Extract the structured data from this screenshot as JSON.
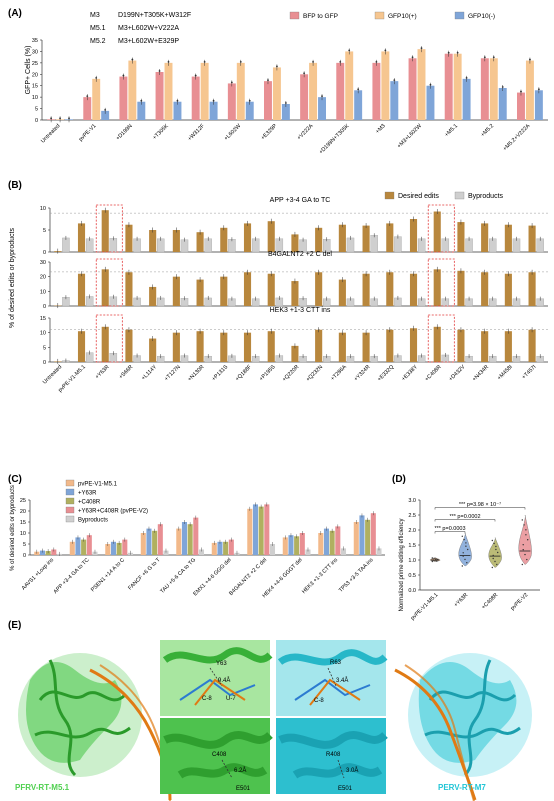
{
  "panelA": {
    "letter": "(A)",
    "ylabel": "GFP+ Cells (%)",
    "yticks": [
      "0",
      "5",
      "10",
      "15",
      "20",
      "25",
      "30",
      "35"
    ],
    "variants": [
      {
        "name": "M3",
        "desc": "D199N+T305K+W312F"
      },
      {
        "name": "M5.1",
        "desc": "M3+L602W+V222A"
      },
      {
        "name": "M5.2",
        "desc": "M3+L602W+E329P"
      }
    ],
    "legend": [
      "BFP to GFP",
      "GFP10(+)",
      "GFP10(-)"
    ],
    "colors": [
      "#e88f93",
      "#f6c690",
      "#7fa5d8"
    ],
    "chart_data": {
      "type": "bar",
      "ylim": [
        0,
        35
      ],
      "categories": [
        "Untreated",
        "pvPE-V1",
        "+D199N",
        "+T305K",
        "+W312F",
        "+L602W",
        "+E329P",
        "+V222A",
        "+D199N+T305K",
        "+M3",
        "+M3+L602W",
        "+M5.1",
        "+M5.2",
        "+M5.2+V222A"
      ],
      "series": [
        {
          "name": "BFP to GFP",
          "values": [
            0.3,
            10,
            19,
            21,
            19,
            16,
            17,
            20,
            25,
            25,
            27,
            29,
            27,
            12
          ]
        },
        {
          "name": "GFP10(+)",
          "values": [
            0.3,
            18,
            26,
            25,
            25,
            25,
            23,
            25,
            30,
            30,
            31,
            29,
            27,
            26
          ]
        },
        {
          "name": "GFP10(-)",
          "values": [
            0.3,
            4,
            8,
            8,
            8,
            8,
            7,
            10,
            13,
            17,
            15,
            18,
            14,
            13
          ]
        }
      ]
    }
  },
  "panelB": {
    "letter": "(B)",
    "ylabel": "% of desired edits or byproducts",
    "legend": [
      "Desired edits",
      "Byproducts"
    ],
    "colors": [
      "#b8873d",
      "#cfcfcf"
    ],
    "categories": [
      "Untreated",
      "pvPE-V1-M5.1",
      "+Y63R",
      "+S66R",
      "+L114Y",
      "+T127N",
      "+N130R",
      "+P131S",
      "+Q188F",
      "+P195S",
      "+Q220R",
      "+Q232N",
      "+T286A",
      "+Y324R",
      "+E332Q",
      "+E338Y",
      "+C408R",
      "+D432V",
      "+N434R",
      "+M458I",
      "+T457I"
    ],
    "sub": [
      {
        "gene": "APP",
        "edit": "+3-4 GA to TC",
        "ylim": [
          0,
          10
        ],
        "yticks": [
          "0",
          "5",
          "10"
        ],
        "desired": [
          0.2,
          6.5,
          9.5,
          6.2,
          5.0,
          5.0,
          4.5,
          5.5,
          6.5,
          7.0,
          4.0,
          5.5,
          6.2,
          6.0,
          6.5,
          7.5,
          9.2,
          6.8,
          6.5,
          6.2,
          6.0
        ],
        "byproducts": [
          3.2,
          3.0,
          3.1,
          3.0,
          3.0,
          2.8,
          3.0,
          2.9,
          3.0,
          3.0,
          2.8,
          2.9,
          3.2,
          3.8,
          3.5,
          3.0,
          3.0,
          3.0,
          3.0,
          3.0,
          3.0
        ]
      },
      {
        "gene": "B4GALNT2",
        "edit": "+2 C del",
        "ylim": [
          0,
          30
        ],
        "yticks": [
          "0",
          "10",
          "20",
          "30"
        ],
        "desired": [
          0.3,
          22,
          25,
          23,
          13,
          20,
          18,
          20,
          23,
          22,
          17,
          23,
          18,
          22,
          23,
          22,
          25,
          24,
          23,
          22,
          23
        ],
        "byproducts": [
          6.0,
          6.5,
          6.3,
          5.5,
          5.5,
          5.3,
          5.5,
          5.0,
          5.0,
          5.5,
          5.3,
          5.0,
          5.0,
          5.0,
          5.5,
          5.0,
          5.0,
          5.0,
          5.0,
          5.0,
          5.0
        ]
      },
      {
        "gene": "HEK3",
        "edit": "+1-3 CTT ins",
        "ylim": [
          0,
          15
        ],
        "yticks": [
          "0",
          "5",
          "10",
          "15"
        ],
        "desired": [
          0.2,
          10.5,
          12.0,
          11.0,
          8.0,
          10.0,
          10.5,
          10.0,
          10.0,
          10.5,
          5.5,
          11.0,
          10.0,
          10.0,
          11.0,
          11.5,
          12.0,
          11.0,
          10.5,
          10.5,
          11.0
        ],
        "byproducts": [
          0.5,
          3.2,
          3.0,
          2.2,
          2.0,
          2.2,
          2.0,
          2.1,
          2.0,
          2.2,
          2.0,
          2.0,
          2.0,
          2.0,
          2.2,
          2.2,
          2.4,
          2.0,
          2.0,
          2.0,
          2.0
        ]
      }
    ]
  },
  "panelC": {
    "letter": "(C)",
    "ylabel": "% of desired edits or byproducts",
    "yticks": [
      "0",
      "5",
      "10",
      "15",
      "20",
      "25"
    ],
    "legend": [
      "pvPE-V1-M5.1",
      "+Y63R",
      "+C408R",
      "+Y63R+C408R (pvPE-V2)",
      "Byproducts"
    ],
    "colors": [
      "#f2b98a",
      "#7fa5d8",
      "#b0b060",
      "#e88f93",
      "#cfcfcf"
    ],
    "chart_data": {
      "type": "bar",
      "ylim": [
        0,
        25
      ],
      "categories": [
        "AAVS1 +Loxp ins",
        "APP +3-4 GA to TC",
        "PSEN1 +14 A to C",
        "FANCF +6 G to T",
        "TAU +5-6 CA to TG",
        "EMX1 +4-6 GGG del",
        "B4GALNT2 +2 C del",
        "HEK4 +4-6 GGGT del",
        "HEK3 +1-3 CTT ins",
        "TP53 +3-5 TAA ins"
      ],
      "series": [
        {
          "name": "pvPE-V1-M5.1",
          "values": [
            1.5,
            6.0,
            5.0,
            10.0,
            12.0,
            5.5,
            21.0,
            8.0,
            10.0,
            15.0
          ]
        },
        {
          "name": "+Y63R",
          "values": [
            2.0,
            8.0,
            6.0,
            12.0,
            15.0,
            6.0,
            23.0,
            9.0,
            12.0,
            18.0
          ]
        },
        {
          "name": "+C408R",
          "values": [
            1.8,
            7.0,
            5.5,
            11.0,
            14.0,
            6.0,
            22.0,
            8.5,
            11.0,
            16.0
          ]
        },
        {
          "name": "+Y63R+C408R (pvPE-V2)",
          "values": [
            2.5,
            9.0,
            7.0,
            14.0,
            17.0,
            7.0,
            23.0,
            10.0,
            13.0,
            19.0
          ]
        },
        {
          "name": "Byproducts",
          "values": [
            0.5,
            1.5,
            1.0,
            2.0,
            2.5,
            1.0,
            5.0,
            2.5,
            3.0,
            3.0
          ]
        }
      ]
    }
  },
  "panelD": {
    "letter": "(D)",
    "ylabel": "Normalized prime editing efficiency",
    "yticks": [
      "0.0",
      "0.5",
      "1.0",
      "1.5",
      "2.0",
      "2.5",
      "3.0"
    ],
    "groups": [
      "pvPE-V1-M5.1",
      "+Y63R",
      "+C408R",
      "pvPE-V2"
    ],
    "medians": [
      1.0,
      1.15,
      1.13,
      1.3
    ],
    "colors": [
      "#f2b98a",
      "#7fa5d8",
      "#b0b060",
      "#e88f93"
    ],
    "stats": [
      "*** p=0.0003",
      "*** p=0.0002",
      "*** p=3.98 × 10⁻⁷"
    ]
  },
  "panelE": {
    "letter": "(E)",
    "left_label": "PFRV-RT-M5.1",
    "right_label": "PERV-RT-M7",
    "residues": {
      "a": [
        "Y63",
        "9.4Å",
        "C-8",
        "U-7"
      ],
      "b": [
        "R63",
        "3.4Å",
        "C-8"
      ],
      "c": [
        "C408",
        "6.2Å",
        "E501"
      ],
      "d": [
        "R408",
        "3.0Å",
        "E501"
      ]
    }
  }
}
